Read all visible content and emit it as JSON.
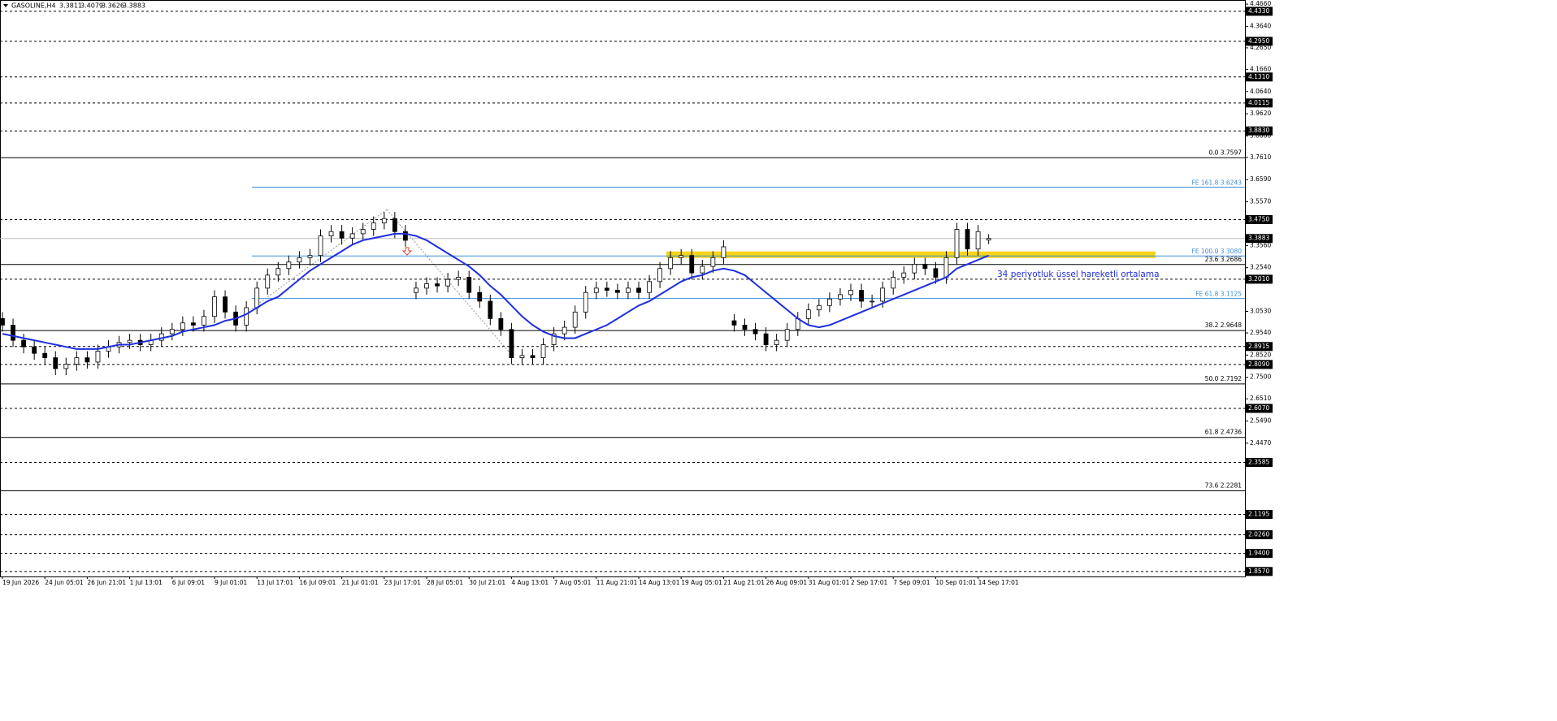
{
  "chart_data": {
    "type": "candlestick",
    "title": "GASOLINE,H4",
    "categories": [
      "19 Jun 2026",
      null,
      null,
      null,
      "24 Jun 05:01",
      null,
      null,
      null,
      "26 Jun 21:01",
      null,
      null,
      null,
      "1 Jul 13:01",
      null,
      null,
      null,
      "6 Jul 09:01",
      null,
      null,
      null,
      "9 Jul 01:01",
      null,
      null,
      null,
      "13 Jul 17:01",
      null,
      null,
      null,
      "16 Jul 09:01",
      null,
      null,
      null,
      "21 Jul 01:01",
      null,
      null,
      null,
      "23 Jul 17:01",
      null,
      null,
      null,
      "28 Jul 05:01",
      null,
      null,
      null,
      "30 Jul 21:01",
      null,
      null,
      null,
      "4 Aug 13:01",
      null,
      null,
      null,
      "7 Aug 05:01",
      null,
      null,
      null,
      "11 Aug 21:01",
      null,
      null,
      null,
      "14 Aug 13:01",
      null,
      null,
      null,
      "19 Aug 05:01",
      null,
      null,
      null,
      "21 Aug 21:01",
      null,
      null,
      null,
      "26 Aug 09:01",
      null,
      null,
      null,
      "31 Aug 01:01",
      null,
      null,
      null,
      "2 Sep 17:01",
      null,
      null,
      null,
      "7 Sep 09:01",
      null,
      null,
      null,
      "10 Sep 01:01",
      null,
      null,
      null,
      "14 Sep 17:01",
      null
    ],
    "open": [
      3.02,
      2.99,
      2.92,
      2.89,
      2.86,
      2.84,
      2.79,
      2.81,
      2.84,
      2.82,
      2.87,
      2.89,
      2.91,
      2.92,
      2.9,
      2.92,
      2.95,
      2.97,
      3.0,
      2.99,
      3.03,
      3.12,
      3.05,
      2.99,
      3.07,
      3.16,
      3.22,
      3.25,
      3.28,
      3.3,
      3.31,
      3.4,
      3.42,
      3.39,
      3.41,
      3.43,
      3.46,
      3.48,
      3.42,
      3.14,
      3.16,
      3.18,
      3.17,
      3.2,
      3.21,
      3.14,
      3.1,
      3.02,
      2.97,
      2.84,
      2.85,
      2.84,
      2.9,
      2.95,
      2.98,
      3.05,
      3.14,
      3.16,
      3.15,
      3.14,
      3.16,
      3.14,
      3.19,
      3.25,
      3.3,
      3.31,
      3.23,
      3.26,
      3.3,
      3.01,
      2.99,
      2.97,
      2.95,
      2.9,
      2.92,
      2.97,
      3.02,
      3.06,
      3.08,
      3.11,
      3.13,
      3.15,
      3.1,
      3.1,
      3.16,
      3.21,
      3.23,
      3.27,
      3.25,
      3.21,
      3.3,
      3.43,
      3.34,
      3.3811
    ],
    "high": [
      3.05,
      3.02,
      2.95,
      2.92,
      2.89,
      2.87,
      2.84,
      2.87,
      2.87,
      2.9,
      2.92,
      2.94,
      2.95,
      2.95,
      2.95,
      2.98,
      3.0,
      3.03,
      3.03,
      3.06,
      3.15,
      3.15,
      3.08,
      3.1,
      3.19,
      3.25,
      3.28,
      3.31,
      3.33,
      3.34,
      3.43,
      3.45,
      3.45,
      3.44,
      3.46,
      3.49,
      3.51,
      3.51,
      3.45,
      3.19,
      3.21,
      3.21,
      3.23,
      3.24,
      3.24,
      3.17,
      3.13,
      3.05,
      3.0,
      2.88,
      2.88,
      2.93,
      2.98,
      3.01,
      3.08,
      3.17,
      3.19,
      3.19,
      3.18,
      3.19,
      3.19,
      3.22,
      3.28,
      3.33,
      3.34,
      3.34,
      3.29,
      3.33,
      3.38,
      3.04,
      3.02,
      3.0,
      2.98,
      2.95,
      3.0,
      3.05,
      3.09,
      3.11,
      3.14,
      3.16,
      3.18,
      3.18,
      3.13,
      3.19,
      3.24,
      3.26,
      3.3,
      3.3,
      3.28,
      3.33,
      3.46,
      3.46,
      3.45,
      3.4079
    ],
    "low": [
      2.96,
      2.89,
      2.86,
      2.83,
      2.81,
      2.76,
      2.76,
      2.78,
      2.79,
      2.79,
      2.84,
      2.86,
      2.88,
      2.87,
      2.87,
      2.89,
      2.92,
      2.94,
      2.96,
      2.96,
      3.0,
      3.02,
      2.96,
      2.96,
      3.04,
      3.13,
      3.19,
      3.22,
      3.25,
      3.27,
      3.28,
      3.37,
      3.36,
      3.36,
      3.38,
      3.4,
      3.43,
      3.39,
      3.35,
      3.11,
      3.13,
      3.14,
      3.14,
      3.17,
      3.11,
      3.07,
      2.99,
      2.94,
      2.81,
      2.81,
      2.81,
      2.81,
      2.87,
      2.92,
      2.95,
      3.02,
      3.11,
      3.12,
      3.11,
      3.11,
      3.11,
      3.11,
      3.16,
      3.22,
      3.27,
      3.2,
      3.2,
      3.23,
      3.27,
      2.96,
      2.94,
      2.92,
      2.87,
      2.87,
      2.89,
      2.94,
      2.99,
      3.03,
      3.05,
      3.08,
      3.1,
      3.07,
      3.07,
      3.07,
      3.13,
      3.18,
      3.2,
      3.22,
      3.18,
      3.18,
      3.27,
      3.31,
      3.31,
      3.3626
    ],
    "close": [
      2.99,
      2.92,
      2.89,
      2.86,
      2.84,
      2.79,
      2.81,
      2.84,
      2.82,
      2.87,
      2.89,
      2.91,
      2.92,
      2.9,
      2.92,
      2.95,
      2.97,
      3.0,
      2.99,
      3.03,
      3.12,
      3.05,
      2.99,
      3.07,
      3.16,
      3.22,
      3.25,
      3.28,
      3.3,
      3.31,
      3.4,
      3.42,
      3.39,
      3.41,
      3.43,
      3.46,
      3.48,
      3.42,
      3.38,
      3.16,
      3.18,
      3.17,
      3.2,
      3.21,
      3.14,
      3.1,
      3.02,
      2.97,
      2.84,
      2.85,
      2.84,
      2.9,
      2.95,
      2.98,
      3.05,
      3.14,
      3.16,
      3.15,
      3.14,
      3.16,
      3.14,
      3.19,
      3.25,
      3.3,
      3.31,
      3.23,
      3.26,
      3.3,
      3.35,
      2.99,
      2.97,
      2.95,
      2.9,
      2.92,
      2.97,
      3.02,
      3.06,
      3.08,
      3.11,
      3.13,
      3.15,
      3.1,
      3.1,
      3.16,
      3.21,
      3.23,
      3.27,
      3.25,
      3.21,
      3.3,
      3.43,
      3.34,
      3.42,
      3.3883
    ],
    "ema_values": [
      2.95,
      2.94,
      2.93,
      2.92,
      2.91,
      2.9,
      2.89,
      2.88,
      2.88,
      2.88,
      2.89,
      2.9,
      2.9,
      2.91,
      2.92,
      2.93,
      2.94,
      2.96,
      2.97,
      2.98,
      2.99,
      3.01,
      3.02,
      3.04,
      3.07,
      3.1,
      3.12,
      3.16,
      3.2,
      3.24,
      3.27,
      3.3,
      3.33,
      3.36,
      3.38,
      3.39,
      3.4,
      3.41,
      3.41,
      3.4,
      3.38,
      3.35,
      3.32,
      3.29,
      3.26,
      3.22,
      3.17,
      3.13,
      3.08,
      3.03,
      2.99,
      2.96,
      2.94,
      2.93,
      2.93,
      2.95,
      2.97,
      2.99,
      3.02,
      3.05,
      3.08,
      3.1,
      3.13,
      3.16,
      3.19,
      3.21,
      3.22,
      3.24,
      3.25,
      3.24,
      3.22,
      3.18,
      3.14,
      3.1,
      3.06,
      3.02,
      2.99,
      2.98,
      2.99,
      3.01,
      3.03,
      3.05,
      3.07,
      3.09,
      3.11,
      3.13,
      3.15,
      3.17,
      3.19,
      3.21,
      3.25,
      3.27,
      3.29,
      3.31
    ],
    "ema_color": "#1f2fe0",
    "annotation": "34 periyotluk üssel hareketli ortalama",
    "zone": [
      3.2988,
      3.3287
    ],
    "zone_color": "#f5cf00",
    "ylim": [
      1.834,
      4.485
    ],
    "yticks": [
      {
        "value": 4.466,
        "label": "4.4660"
      },
      {
        "value": 4.364,
        "label": "4.3640"
      },
      {
        "value": 4.265,
        "label": "4.2650"
      },
      {
        "value": 4.166,
        "label": "4.1660"
      },
      {
        "value": 4.064,
        "label": "4.0640"
      },
      {
        "value": 3.962,
        "label": "3.9620"
      },
      {
        "value": 3.86,
        "label": "3.8600"
      },
      {
        "value": 3.761,
        "label": "3.7610"
      },
      {
        "value": 3.659,
        "label": "3.6590"
      },
      {
        "value": 3.557,
        "label": "3.5570"
      },
      {
        "value": 3.356,
        "label": "3.3560"
      },
      {
        "value": 3.254,
        "label": "3.2540"
      },
      {
        "value": 3.053,
        "label": "3.0530"
      },
      {
        "value": 2.954,
        "label": "2.9540"
      },
      {
        "value": 2.852,
        "label": "2.8520"
      },
      {
        "value": 2.75,
        "label": "2.7500"
      },
      {
        "value": 2.651,
        "label": "2.6510"
      },
      {
        "value": 2.549,
        "label": "2.5490"
      },
      {
        "value": 2.447,
        "label": "2.4470"
      }
    ],
    "levels": [
      {
        "value": 4.433,
        "label": "4.4330"
      },
      {
        "value": 4.295,
        "label": "4.2950"
      },
      {
        "value": 4.131,
        "label": "4.1310"
      },
      {
        "value": 4.0115,
        "label": "4.0115"
      },
      {
        "value": 3.883,
        "label": "3.8830"
      },
      {
        "value": 3.475,
        "label": "3.4750"
      },
      {
        "value": 3.201,
        "label": "3.2010"
      },
      {
        "value": 2.8915,
        "label": "2.8915"
      },
      {
        "value": 2.809,
        "label": "2.8090"
      },
      {
        "value": 2.607,
        "label": "2.6070"
      },
      {
        "value": 2.3585,
        "label": "2.3585"
      },
      {
        "value": 2.1195,
        "label": "2.1195"
      },
      {
        "value": 2.026,
        "label": "2.0260"
      },
      {
        "value": 1.94,
        "label": "1.9400"
      },
      {
        "value": 1.857,
        "label": "1.8570"
      }
    ],
    "fib_levels": [
      {
        "value": 3.7597,
        "label": "0.0 3.7597"
      },
      {
        "value": 3.2686,
        "label": "23.6 3.2686"
      },
      {
        "value": 2.9648,
        "label": "38.2 2.9648"
      },
      {
        "value": 2.7192,
        "label": "50.0 2.7192"
      },
      {
        "value": 2.4736,
        "label": "61.8 2.4736"
      },
      {
        "value": 2.2281,
        "label": "73.6 2.2281"
      }
    ],
    "fe_levels": [
      {
        "value": 3.6243,
        "label": "FE 161.8 3.6243"
      },
      {
        "value": 3.308,
        "label": "FE 100.0 3.3080"
      },
      {
        "value": 3.1125,
        "label": "FE 61.8 3.1125"
      }
    ],
    "fe_color": "#3d8fd6"
  }
}
